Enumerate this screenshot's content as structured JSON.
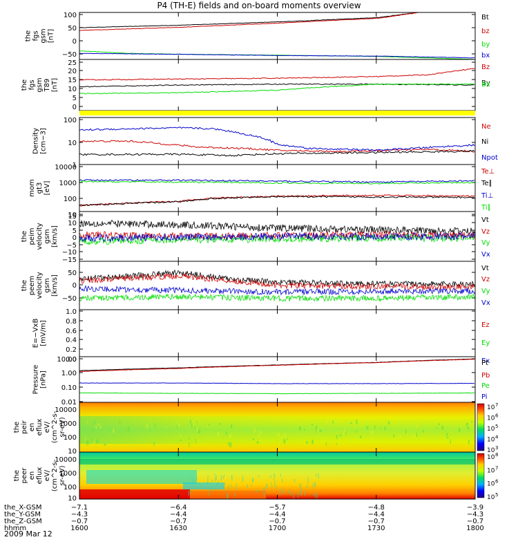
{
  "title": "P4 (TH-E) fields and on-board moments overview",
  "date_label": "2009 Mar 12",
  "colors": {
    "black": "#000000",
    "red": "#cc0000",
    "green": "#00dd00",
    "blue": "#0000cc",
    "yellow": "#ffff00"
  },
  "chart_data": [
    {
      "type": "line",
      "ylabel": [
        "the",
        "fgs",
        "gsm",
        "[nT]"
      ],
      "ylim": [
        -50,
        105
      ],
      "yticks": [
        "100",
        "50",
        "0",
        "−50"
      ],
      "series": [
        {
          "name": "Bt",
          "color": "black",
          "points": [
            [
              1600,
              55
            ],
            [
              1630,
              63
            ],
            [
              1700,
              74
            ],
            [
              1730,
              88
            ],
            [
              1742,
              105
            ]
          ]
        },
        {
          "name": "bz",
          "color": "red",
          "points": [
            [
              1600,
              46
            ],
            [
              1630,
              56
            ],
            [
              1700,
              70
            ],
            [
              1730,
              86
            ],
            [
              1742,
              104
            ]
          ]
        },
        {
          "name": "by",
          "color": "green",
          "points": [
            [
              1600,
              -22
            ],
            [
              1615,
              -30
            ],
            [
              1630,
              -33
            ],
            [
              1700,
              -36
            ],
            [
              1730,
              -40
            ],
            [
              1800,
              -50
            ]
          ]
        },
        {
          "name": "bx",
          "color": "blue",
          "points": [
            [
              1600,
              -30
            ],
            [
              1630,
              -33
            ],
            [
              1700,
              -37
            ],
            [
              1730,
              -39
            ],
            [
              1800,
              -45
            ]
          ]
        }
      ]
    },
    {
      "type": "line",
      "ylabel": [
        "the",
        "fgs",
        "gsm",
        "T89",
        "[nT]"
      ],
      "ylim": [
        -3,
        27
      ],
      "yticks": [
        "25",
        "20",
        "15",
        "10",
        "5",
        "0"
      ],
      "series": [
        {
          "name": "Bz",
          "color": "red",
          "points": [
            [
              1600,
              15
            ],
            [
              1630,
              15.5
            ],
            [
              1700,
              16
            ],
            [
              1730,
              17
            ],
            [
              1745,
              18
            ],
            [
              1800,
              22
            ]
          ]
        },
        {
          "name": "By",
          "color": "black",
          "points": [
            [
              1600,
              11
            ],
            [
              1630,
              12
            ],
            [
              1700,
              12.5
            ],
            [
              1730,
              12.5
            ],
            [
              1800,
              12
            ]
          ]
        },
        {
          "name": "Bx",
          "color": "green",
          "points": [
            [
              1600,
              7
            ],
            [
              1630,
              7.5
            ],
            [
              1700,
              9
            ],
            [
              1715,
              11
            ],
            [
              1730,
              12.5
            ],
            [
              1800,
              12.5
            ]
          ]
        }
      ]
    },
    {
      "type": "line",
      "ylabel": [
        "Density",
        "[cm−3]"
      ],
      "log": true,
      "ylim": [
        1,
        150
      ],
      "yticks": [
        "100",
        "10",
        "1"
      ],
      "series": [
        {
          "name": "Ne",
          "color": "red",
          "points": [
            [
              1600,
              12
            ],
            [
              1615,
              12
            ],
            [
              1625,
              9
            ],
            [
              1635,
              6.5
            ],
            [
              1650,
              5.5
            ],
            [
              1700,
              4.5
            ],
            [
              1720,
              4
            ],
            [
              1745,
              5
            ],
            [
              1800,
              4
            ]
          ]
        },
        {
          "name": "Ni",
          "color": "black",
          "points": [
            [
              1600,
              2.9
            ],
            [
              1630,
              3
            ],
            [
              1645,
              2.6
            ],
            [
              1700,
              3.2
            ],
            [
              1730,
              3.6
            ],
            [
              1800,
              4.2
            ]
          ]
        },
        {
          "name": "Npot",
          "color": "blue",
          "points": [
            [
              1600,
              40
            ],
            [
              1630,
              50
            ],
            [
              1640,
              45
            ],
            [
              1650,
              25
            ],
            [
              1700,
              8
            ],
            [
              1710,
              5.5
            ],
            [
              1730,
              4.6
            ],
            [
              1740,
              5.5
            ],
            [
              1800,
              8
            ]
          ]
        }
      ]
    },
    {
      "type": "line",
      "ylabel": [
        "mom",
        "gt3",
        "[eV]"
      ],
      "log": true,
      "ylim": [
        7,
        12000
      ],
      "yticks": [
        "10000",
        "1000",
        "100",
        "10"
      ],
      "series": [
        {
          "name": "Te⊥",
          "color": "red",
          "points": [
            [
              1600,
              18
            ],
            [
              1630,
              35
            ],
            [
              1640,
              60
            ],
            [
              1700,
              80
            ],
            [
              1730,
              90
            ],
            [
              1800,
              80
            ]
          ]
        },
        {
          "name": "Te∥",
          "color": "black",
          "points": [
            [
              1600,
              18
            ],
            [
              1630,
              33
            ],
            [
              1640,
              55
            ],
            [
              1700,
              75
            ],
            [
              1730,
              70
            ],
            [
              1800,
              65
            ]
          ]
        },
        {
          "name": "Ti⊥",
          "color": "blue",
          "points": [
            [
              1600,
              1000
            ],
            [
              1630,
              1000
            ],
            [
              1700,
              850
            ],
            [
              1730,
              750
            ],
            [
              1800,
              900
            ]
          ]
        },
        {
          "name": "Ti∥",
          "color": "green",
          "points": [
            [
              1600,
              800
            ],
            [
              1630,
              750
            ],
            [
              1700,
              650
            ],
            [
              1730,
              600
            ],
            [
              1800,
              700
            ]
          ]
        }
      ]
    },
    {
      "type": "line",
      "ylabel": [
        "the",
        "peim",
        "velocity",
        "gsm",
        "[km/s]"
      ],
      "ylim": [
        -15,
        15
      ],
      "yticks": [
        "15",
        "10",
        "5",
        "0",
        "−5",
        "−10",
        "−15"
      ],
      "series": [
        {
          "name": "Vt",
          "color": "black",
          "points": [
            [
              1600,
              8
            ],
            [
              1630,
              7
            ],
            [
              1700,
              5
            ],
            [
              1730,
              4
            ],
            [
              1800,
              3
            ]
          ]
        },
        {
          "name": "Vz",
          "color": "red",
          "points": [
            [
              1600,
              1
            ],
            [
              1630,
              0
            ],
            [
              1700,
              0.5
            ],
            [
              1730,
              1
            ],
            [
              1800,
              0.5
            ]
          ]
        },
        {
          "name": "Vy",
          "color": "green",
          "points": [
            [
              1600,
              -3
            ],
            [
              1630,
              -2
            ],
            [
              1700,
              -1.5
            ],
            [
              1730,
              -1
            ],
            [
              1800,
              -1
            ]
          ]
        },
        {
          "name": "Vx",
          "color": "blue",
          "points": [
            [
              1600,
              -1
            ],
            [
              1630,
              -0.5
            ],
            [
              1700,
              0
            ],
            [
              1730,
              0
            ],
            [
              1800,
              0
            ]
          ]
        }
      ]
    },
    {
      "type": "line",
      "ylabel": [
        "the",
        "peem",
        "velocity",
        "gsm",
        "[km/s]"
      ],
      "ylim": [
        -60,
        90
      ],
      "yticks": [
        "50",
        "0",
        "−50"
      ],
      "series": [
        {
          "name": "Vt",
          "color": "black",
          "points": [
            [
              1600,
              35
            ],
            [
              1630,
              55
            ],
            [
              1645,
              35
            ],
            [
              1700,
              25
            ],
            [
              1730,
              20
            ],
            [
              1800,
              20
            ]
          ]
        },
        {
          "name": "Vz",
          "color": "red",
          "points": [
            [
              1600,
              30
            ],
            [
              1630,
              45
            ],
            [
              1650,
              25
            ],
            [
              1700,
              15
            ],
            [
              1730,
              12
            ],
            [
              1800,
              10
            ]
          ]
        },
        {
          "name": "Vy",
          "color": "green",
          "points": [
            [
              1600,
              -25
            ],
            [
              1630,
              -20
            ],
            [
              1700,
              -25
            ],
            [
              1730,
              -25
            ],
            [
              1800,
              -20
            ]
          ]
        },
        {
          "name": "Vx",
          "color": "blue",
          "points": [
            [
              1600,
              5
            ],
            [
              1630,
              0
            ],
            [
              1700,
              -5
            ],
            [
              1730,
              -3
            ],
            [
              1800,
              -2
            ]
          ]
        }
      ]
    },
    {
      "type": "line",
      "ylabel": [
        "E=−VxB",
        "[mV/m]"
      ],
      "ylim": [
        0,
        1
      ],
      "yticks": [
        "1.0",
        "0.8",
        "0.6",
        "0.4",
        "0.2",
        "0.0"
      ],
      "series": [
        {
          "name": "Ez",
          "color": "red",
          "points": []
        },
        {
          "name": "Ey",
          "color": "green",
          "points": []
        },
        {
          "name": "Ex",
          "color": "blue",
          "points": []
        }
      ]
    },
    {
      "type": "line",
      "ylabel": [
        "Pressure",
        "[nPa]"
      ],
      "log": true,
      "ylim": [
        0.01,
        15
      ],
      "yticks": [
        "10.00",
        "1.00",
        "0.10",
        "0.01"
      ],
      "series": [
        {
          "name": "Pt",
          "color": "black",
          "points": [
            [
              1600,
              1.6
            ],
            [
              1630,
              2.5
            ],
            [
              1700,
              4
            ],
            [
              1730,
              6
            ],
            [
              1800,
              10.5
            ]
          ]
        },
        {
          "name": "Pb",
          "color": "red",
          "points": [
            [
              1600,
              1.4
            ],
            [
              1630,
              2.3
            ],
            [
              1700,
              3.8
            ],
            [
              1730,
              5.8
            ],
            [
              1800,
              10
            ]
          ]
        },
        {
          "name": "Pe",
          "color": "green",
          "points": [
            [
              1600,
              0.045
            ],
            [
              1630,
              0.042
            ],
            [
              1700,
              0.04
            ],
            [
              1730,
              0.042
            ],
            [
              1800,
              0.045
            ]
          ]
        },
        {
          "name": "Pi",
          "color": "blue",
          "points": [
            [
              1600,
              0.22
            ],
            [
              1630,
              0.22
            ],
            [
              1700,
              0.2
            ],
            [
              1730,
              0.2
            ],
            [
              1800,
              0.21
            ]
          ]
        }
      ]
    },
    {
      "type": "heatmap",
      "ylabel": [
        "the",
        "peir",
        "en",
        "eflux",
        "eV/",
        "(cm^2-s-",
        "sr-eV)"
      ],
      "yticks": [
        "10000",
        "1000",
        "100",
        "10"
      ],
      "colorbar": {
        "labels": [
          "10",
          "10",
          "10",
          "10",
          "10"
        ],
        "exponents": [
          "7",
          "6",
          "5",
          "4",
          "3"
        ]
      }
    },
    {
      "type": "heatmap",
      "ylabel": [
        "the",
        "peer",
        "en",
        "eflux",
        "eV/",
        "(cm^2-s-",
        "sr-eV)"
      ],
      "yticks": [
        "10000",
        "1000",
        "100",
        "10"
      ],
      "colorbar": {
        "labels": [
          "10",
          "10",
          "10",
          "10"
        ],
        "exponents": [
          "8",
          "7",
          "6",
          "5"
        ]
      }
    }
  ],
  "orbit_table": {
    "rows": [
      {
        "label": "the_X-GSM",
        "values": [
          "−7.1",
          "−6.4",
          "−5.7",
          "−4.8",
          "−3.9"
        ]
      },
      {
        "label": "the_Y-GSM",
        "values": [
          "−4.3",
          "−4.4",
          "−4.4",
          "−4.4",
          "−4.3"
        ]
      },
      {
        "label": "the_Z-GSM",
        "values": [
          "−0.7",
          "−0.7",
          "−0.7",
          "−0.7",
          "−0.7"
        ]
      },
      {
        "label": "hhmm",
        "values": [
          "1600",
          "1630",
          "1700",
          "1730",
          "1800"
        ]
      }
    ]
  }
}
